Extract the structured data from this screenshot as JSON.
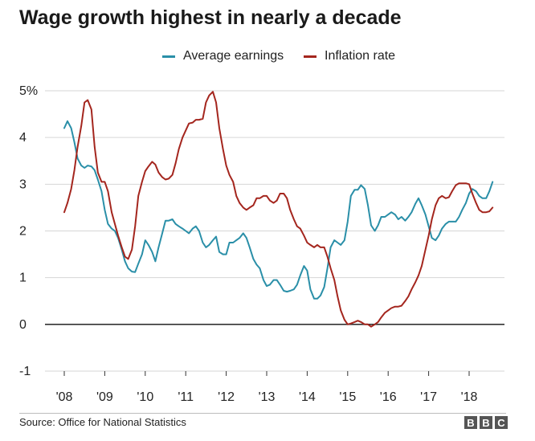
{
  "title": "Wage growth highest in nearly a decade",
  "source": "Source: Office for National Statistics",
  "logo_letters": [
    "B",
    "B",
    "C"
  ],
  "chart_data": {
    "type": "line",
    "title": "Wage growth highest in nearly a decade",
    "xlabel": "",
    "ylabel": "",
    "xlim": [
      2008,
      2019
    ],
    "ylim": [
      -1,
      5
    ],
    "y_ticks": [
      {
        "value": 5,
        "label": "5%"
      },
      {
        "value": 4,
        "label": "4"
      },
      {
        "value": 3,
        "label": "3"
      },
      {
        "value": 2,
        "label": "2"
      },
      {
        "value": 1,
        "label": "1"
      },
      {
        "value": 0,
        "label": "0"
      },
      {
        "value": -1,
        "label": "-1"
      }
    ],
    "x_ticks": [
      {
        "value": 2008,
        "label": "'08"
      },
      {
        "value": 2009,
        "label": "'09"
      },
      {
        "value": 2010,
        "label": "'10"
      },
      {
        "value": 2011,
        "label": "'11"
      },
      {
        "value": 2012,
        "label": "'12"
      },
      {
        "value": 2013,
        "label": "'13"
      },
      {
        "value": 2014,
        "label": "'14"
      },
      {
        "value": 2015,
        "label": "'15"
      },
      {
        "value": 2016,
        "label": "'16"
      },
      {
        "value": 2017,
        "label": "'17"
      },
      {
        "value": 2018,
        "label": "'18"
      }
    ],
    "grid": true,
    "zero_line": true,
    "legend_position": "top-center",
    "series": [
      {
        "name": "Average earnings",
        "color": "#2a8fa8",
        "points": [
          [
            2008.0,
            4.2
          ],
          [
            2008.08,
            4.35
          ],
          [
            2008.17,
            4.2
          ],
          [
            2008.25,
            3.9
          ],
          [
            2008.33,
            3.55
          ],
          [
            2008.42,
            3.4
          ],
          [
            2008.5,
            3.35
          ],
          [
            2008.58,
            3.4
          ],
          [
            2008.67,
            3.38
          ],
          [
            2008.75,
            3.3
          ],
          [
            2008.83,
            3.1
          ],
          [
            2008.92,
            2.85
          ],
          [
            2009.0,
            2.45
          ],
          [
            2009.08,
            2.15
          ],
          [
            2009.17,
            2.05
          ],
          [
            2009.25,
            2.0
          ],
          [
            2009.33,
            1.85
          ],
          [
            2009.42,
            1.6
          ],
          [
            2009.5,
            1.35
          ],
          [
            2009.58,
            1.2
          ],
          [
            2009.67,
            1.13
          ],
          [
            2009.75,
            1.12
          ],
          [
            2009.83,
            1.3
          ],
          [
            2009.92,
            1.5
          ],
          [
            2010.0,
            1.8
          ],
          [
            2010.08,
            1.7
          ],
          [
            2010.17,
            1.55
          ],
          [
            2010.25,
            1.35
          ],
          [
            2010.33,
            1.65
          ],
          [
            2010.42,
            1.95
          ],
          [
            2010.5,
            2.22
          ],
          [
            2010.58,
            2.22
          ],
          [
            2010.67,
            2.25
          ],
          [
            2010.75,
            2.15
          ],
          [
            2010.83,
            2.1
          ],
          [
            2010.92,
            2.05
          ],
          [
            2011.0,
            2.0
          ],
          [
            2011.08,
            1.95
          ],
          [
            2011.17,
            2.05
          ],
          [
            2011.25,
            2.1
          ],
          [
            2011.33,
            2.0
          ],
          [
            2011.42,
            1.75
          ],
          [
            2011.5,
            1.65
          ],
          [
            2011.58,
            1.7
          ],
          [
            2011.67,
            1.8
          ],
          [
            2011.75,
            1.88
          ],
          [
            2011.83,
            1.55
          ],
          [
            2011.92,
            1.5
          ],
          [
            2012.0,
            1.5
          ],
          [
            2012.08,
            1.75
          ],
          [
            2012.17,
            1.75
          ],
          [
            2012.25,
            1.8
          ],
          [
            2012.33,
            1.85
          ],
          [
            2012.42,
            1.95
          ],
          [
            2012.5,
            1.85
          ],
          [
            2012.58,
            1.65
          ],
          [
            2012.67,
            1.4
          ],
          [
            2012.75,
            1.28
          ],
          [
            2012.83,
            1.2
          ],
          [
            2012.92,
            0.95
          ],
          [
            2013.0,
            0.82
          ],
          [
            2013.08,
            0.85
          ],
          [
            2013.17,
            0.95
          ],
          [
            2013.25,
            0.95
          ],
          [
            2013.33,
            0.85
          ],
          [
            2013.42,
            0.72
          ],
          [
            2013.5,
            0.7
          ],
          [
            2013.58,
            0.72
          ],
          [
            2013.67,
            0.75
          ],
          [
            2013.75,
            0.85
          ],
          [
            2013.83,
            1.05
          ],
          [
            2013.92,
            1.25
          ],
          [
            2014.0,
            1.15
          ],
          [
            2014.08,
            0.75
          ],
          [
            2014.17,
            0.55
          ],
          [
            2014.25,
            0.55
          ],
          [
            2014.33,
            0.62
          ],
          [
            2014.42,
            0.8
          ],
          [
            2014.5,
            1.2
          ],
          [
            2014.58,
            1.65
          ],
          [
            2014.67,
            1.8
          ],
          [
            2014.75,
            1.75
          ],
          [
            2014.83,
            1.7
          ],
          [
            2014.92,
            1.8
          ],
          [
            2015.0,
            2.2
          ],
          [
            2015.08,
            2.75
          ],
          [
            2015.17,
            2.88
          ],
          [
            2015.25,
            2.88
          ],
          [
            2015.33,
            2.98
          ],
          [
            2015.42,
            2.9
          ],
          [
            2015.5,
            2.55
          ],
          [
            2015.58,
            2.12
          ],
          [
            2015.67,
            2.0
          ],
          [
            2015.75,
            2.12
          ],
          [
            2015.83,
            2.3
          ],
          [
            2015.92,
            2.3
          ],
          [
            2016.0,
            2.35
          ],
          [
            2016.08,
            2.4
          ],
          [
            2016.17,
            2.35
          ],
          [
            2016.25,
            2.25
          ],
          [
            2016.33,
            2.3
          ],
          [
            2016.42,
            2.22
          ],
          [
            2016.5,
            2.3
          ],
          [
            2016.58,
            2.4
          ],
          [
            2016.67,
            2.58
          ],
          [
            2016.75,
            2.7
          ],
          [
            2016.83,
            2.55
          ],
          [
            2016.92,
            2.35
          ],
          [
            2017.0,
            2.1
          ],
          [
            2017.08,
            1.85
          ],
          [
            2017.17,
            1.8
          ],
          [
            2017.25,
            1.9
          ],
          [
            2017.33,
            2.05
          ],
          [
            2017.42,
            2.15
          ],
          [
            2017.5,
            2.2
          ],
          [
            2017.58,
            2.2
          ],
          [
            2017.67,
            2.2
          ],
          [
            2017.75,
            2.3
          ],
          [
            2017.83,
            2.45
          ],
          [
            2017.92,
            2.6
          ],
          [
            2018.0,
            2.8
          ],
          [
            2018.08,
            2.9
          ],
          [
            2018.17,
            2.85
          ],
          [
            2018.25,
            2.75
          ],
          [
            2018.33,
            2.7
          ],
          [
            2018.42,
            2.7
          ],
          [
            2018.5,
            2.85
          ],
          [
            2018.58,
            3.05
          ]
        ]
      },
      {
        "name": "Inflation rate",
        "color": "#a4261e",
        "points": [
          [
            2008.0,
            2.4
          ],
          [
            2008.08,
            2.6
          ],
          [
            2008.17,
            2.9
          ],
          [
            2008.25,
            3.3
          ],
          [
            2008.33,
            3.8
          ],
          [
            2008.42,
            4.25
          ],
          [
            2008.5,
            4.75
          ],
          [
            2008.58,
            4.8
          ],
          [
            2008.67,
            4.6
          ],
          [
            2008.75,
            3.8
          ],
          [
            2008.83,
            3.25
          ],
          [
            2008.92,
            3.05
          ],
          [
            2009.0,
            3.05
          ],
          [
            2009.08,
            2.85
          ],
          [
            2009.17,
            2.4
          ],
          [
            2009.25,
            2.15
          ],
          [
            2009.33,
            1.9
          ],
          [
            2009.42,
            1.65
          ],
          [
            2009.5,
            1.45
          ],
          [
            2009.58,
            1.4
          ],
          [
            2009.67,
            1.6
          ],
          [
            2009.75,
            2.1
          ],
          [
            2009.83,
            2.75
          ],
          [
            2009.92,
            3.05
          ],
          [
            2010.0,
            3.28
          ],
          [
            2010.08,
            3.38
          ],
          [
            2010.17,
            3.48
          ],
          [
            2010.25,
            3.42
          ],
          [
            2010.33,
            3.25
          ],
          [
            2010.42,
            3.15
          ],
          [
            2010.5,
            3.1
          ],
          [
            2010.58,
            3.12
          ],
          [
            2010.67,
            3.2
          ],
          [
            2010.75,
            3.45
          ],
          [
            2010.83,
            3.75
          ],
          [
            2010.92,
            4.0
          ],
          [
            2011.0,
            4.15
          ],
          [
            2011.08,
            4.3
          ],
          [
            2011.17,
            4.32
          ],
          [
            2011.25,
            4.38
          ],
          [
            2011.33,
            4.38
          ],
          [
            2011.42,
            4.4
          ],
          [
            2011.5,
            4.75
          ],
          [
            2011.58,
            4.9
          ],
          [
            2011.67,
            4.98
          ],
          [
            2011.75,
            4.75
          ],
          [
            2011.83,
            4.2
          ],
          [
            2011.92,
            3.75
          ],
          [
            2012.0,
            3.4
          ],
          [
            2012.08,
            3.2
          ],
          [
            2012.17,
            3.05
          ],
          [
            2012.25,
            2.75
          ],
          [
            2012.33,
            2.6
          ],
          [
            2012.42,
            2.5
          ],
          [
            2012.5,
            2.45
          ],
          [
            2012.58,
            2.5
          ],
          [
            2012.67,
            2.55
          ],
          [
            2012.75,
            2.7
          ],
          [
            2012.83,
            2.7
          ],
          [
            2012.92,
            2.75
          ],
          [
            2013.0,
            2.75
          ],
          [
            2013.08,
            2.65
          ],
          [
            2013.17,
            2.6
          ],
          [
            2013.25,
            2.65
          ],
          [
            2013.33,
            2.8
          ],
          [
            2013.42,
            2.8
          ],
          [
            2013.5,
            2.7
          ],
          [
            2013.58,
            2.45
          ],
          [
            2013.67,
            2.25
          ],
          [
            2013.75,
            2.1
          ],
          [
            2013.83,
            2.05
          ],
          [
            2013.92,
            1.9
          ],
          [
            2014.0,
            1.75
          ],
          [
            2014.08,
            1.7
          ],
          [
            2014.17,
            1.65
          ],
          [
            2014.25,
            1.7
          ],
          [
            2014.33,
            1.65
          ],
          [
            2014.42,
            1.65
          ],
          [
            2014.5,
            1.45
          ],
          [
            2014.58,
            1.2
          ],
          [
            2014.67,
            0.95
          ],
          [
            2014.75,
            0.6
          ],
          [
            2014.83,
            0.3
          ],
          [
            2014.92,
            0.1
          ],
          [
            2015.0,
            0.0
          ],
          [
            2015.08,
            0.02
          ],
          [
            2015.17,
            0.05
          ],
          [
            2015.25,
            0.08
          ],
          [
            2015.33,
            0.05
          ],
          [
            2015.42,
            0.0
          ],
          [
            2015.5,
            0.0
          ],
          [
            2015.58,
            -0.05
          ],
          [
            2015.67,
            0.0
          ],
          [
            2015.75,
            0.05
          ],
          [
            2015.83,
            0.15
          ],
          [
            2015.92,
            0.25
          ],
          [
            2016.0,
            0.3
          ],
          [
            2016.08,
            0.35
          ],
          [
            2016.17,
            0.38
          ],
          [
            2016.25,
            0.38
          ],
          [
            2016.33,
            0.4
          ],
          [
            2016.42,
            0.5
          ],
          [
            2016.5,
            0.6
          ],
          [
            2016.58,
            0.75
          ],
          [
            2016.67,
            0.9
          ],
          [
            2016.75,
            1.05
          ],
          [
            2016.83,
            1.25
          ],
          [
            2016.92,
            1.6
          ],
          [
            2017.0,
            1.9
          ],
          [
            2017.08,
            2.25
          ],
          [
            2017.17,
            2.55
          ],
          [
            2017.25,
            2.7
          ],
          [
            2017.33,
            2.75
          ],
          [
            2017.42,
            2.7
          ],
          [
            2017.5,
            2.72
          ],
          [
            2017.58,
            2.85
          ],
          [
            2017.67,
            2.98
          ],
          [
            2017.75,
            3.02
          ],
          [
            2017.83,
            3.02
          ],
          [
            2017.92,
            3.02
          ],
          [
            2018.0,
            3.0
          ],
          [
            2018.08,
            2.8
          ],
          [
            2018.17,
            2.6
          ],
          [
            2018.25,
            2.45
          ],
          [
            2018.33,
            2.4
          ],
          [
            2018.42,
            2.4
          ],
          [
            2018.5,
            2.42
          ],
          [
            2018.58,
            2.5
          ]
        ]
      }
    ]
  }
}
